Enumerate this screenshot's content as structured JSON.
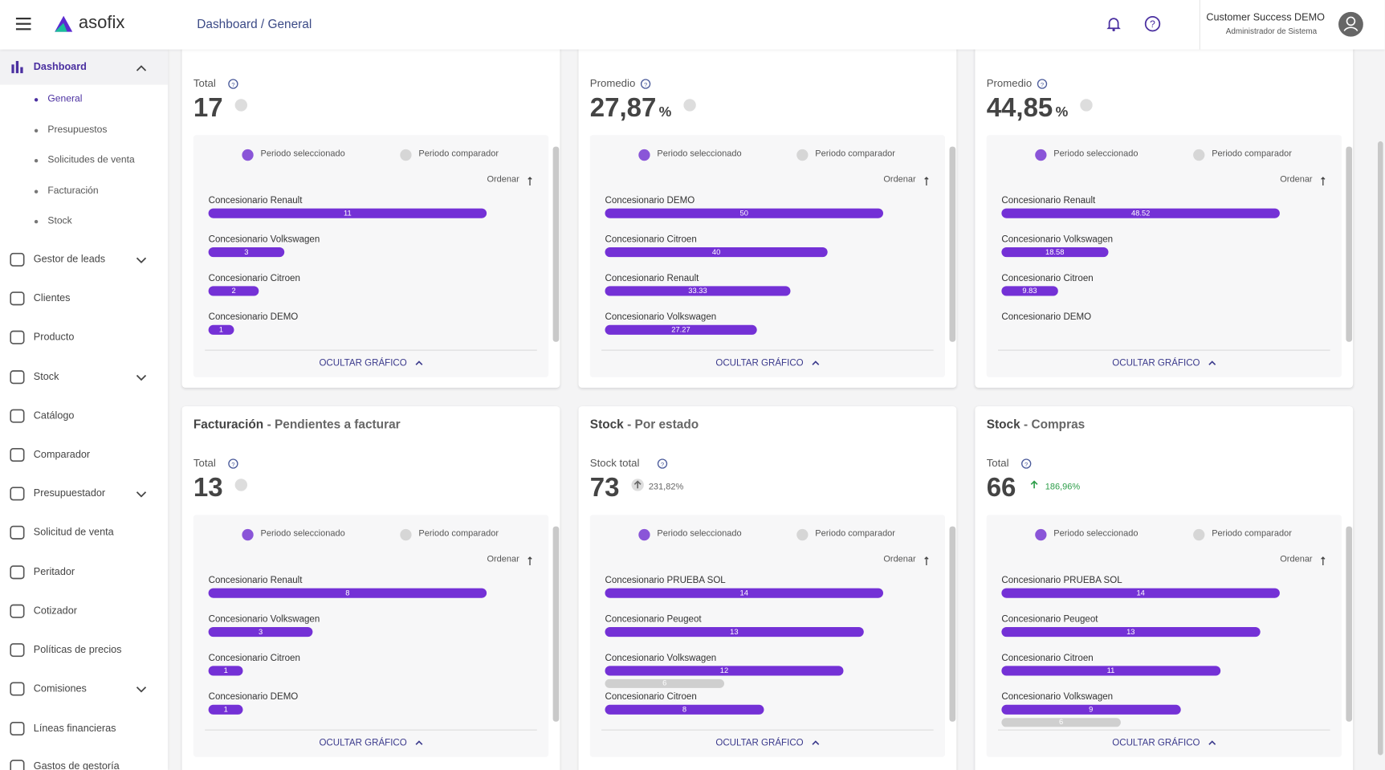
{
  "header": {
    "logo": "asofix",
    "breadcrumb": "Dashboard / General",
    "user_name": "Customer Success DEMO",
    "user_role": "Administrador de Sistema"
  },
  "sidebar": {
    "dashboard": {
      "label": "Dashboard",
      "children": [
        "General",
        "Presupuestos",
        "Solicitudes de venta",
        "Facturación",
        "Stock"
      ]
    },
    "items": [
      {
        "label": "Gestor de leads",
        "expand": true
      },
      {
        "label": "Clientes",
        "expand": false
      },
      {
        "label": "Producto",
        "expand": false
      },
      {
        "label": "Stock",
        "expand": true
      },
      {
        "label": "Catálogo",
        "expand": false
      },
      {
        "label": "Comparador",
        "expand": false
      },
      {
        "label": "Presupuestador",
        "expand": true
      },
      {
        "label": "Solicitud de venta",
        "expand": false
      },
      {
        "label": "Peritador",
        "expand": false
      },
      {
        "label": "Cotizador",
        "expand": false
      },
      {
        "label": "Políticas de precios",
        "expand": false
      },
      {
        "label": "Comisiones",
        "expand": true
      },
      {
        "label": "Líneas financieras",
        "expand": false
      },
      {
        "label": "Gastos de gestoría",
        "expand": false
      }
    ]
  },
  "chart_labels": {
    "selected": "Periodo seleccionado",
    "comparator": "Periodo comparador",
    "sort": "Ordenar",
    "hide": "OCULTAR GRÁFICO"
  },
  "cards": [
    {
      "kpi_label": "Total",
      "kpi_value": 17,
      "chart": {
        "type": "bar",
        "color": "#7431d6",
        "categories": [
          "Concesionario Renault",
          "Concesionario Volkswagen",
          "Concesionario Citroen",
          "Concesionario DEMO"
        ],
        "values": [
          11,
          3,
          2,
          1
        ]
      }
    },
    {
      "kpi_label": "Promedio",
      "kpi_value": "27,87",
      "kpi_unit": "%",
      "chart": {
        "type": "bar",
        "color": "#7431d6",
        "categories": [
          "Concesionario DEMO",
          "Concesionario Citroen",
          "Concesionario Renault",
          "Concesionario Volkswagen"
        ],
        "values": [
          50,
          40,
          33.33,
          27.27
        ]
      }
    },
    {
      "kpi_label": "Promedio",
      "kpi_value": "44,85",
      "kpi_unit": "%",
      "chart": {
        "type": "bar",
        "color": "#7431d6",
        "categories": [
          "Concesionario Renault",
          "Concesionario Volkswagen",
          "Concesionario Citroen",
          "Concesionario DEMO"
        ],
        "values": [
          48.52,
          18.58,
          9.83,
          null
        ]
      }
    },
    {
      "title": "Facturación",
      "subtitle": "- Pendientes a facturar",
      "kpi_label": "Total",
      "kpi_value": 13,
      "chart": {
        "type": "bar",
        "color": "#7431d6",
        "categories": [
          "Concesionario Renault",
          "Concesionario Volkswagen",
          "Concesionario Citroen",
          "Concesionario DEMO"
        ],
        "values": [
          8,
          3,
          1,
          1
        ]
      }
    },
    {
      "title": "Stock",
      "subtitle": "- Por estado",
      "kpi_label": "Stock total",
      "kpi_value": 73,
      "trend": "231,82%",
      "trend_color": "#666666",
      "chart": {
        "type": "bar",
        "color": "#7431d6",
        "compare_color": "#cfcfcf",
        "categories": [
          "Concesionario PRUEBA SOL",
          "Concesionario Peugeot",
          "Concesionario Volkswagen",
          "Concesionario Citroen"
        ],
        "values": [
          14,
          13,
          12,
          8
        ],
        "compare": [
          null,
          null,
          6,
          null
        ]
      }
    },
    {
      "title": "Stock",
      "subtitle": "- Compras",
      "kpi_label": "Total",
      "kpi_value": 66,
      "trend": "186,96%",
      "trend_color": "#2e9e4a",
      "chart": {
        "type": "bar",
        "color": "#7431d6",
        "compare_color": "#cfcfcf",
        "categories": [
          "Concesionario PRUEBA SOL",
          "Concesionario Peugeot",
          "Concesionario Citroen",
          "Concesionario Volkswagen"
        ],
        "values": [
          14,
          13,
          11,
          9
        ],
        "compare": [
          null,
          null,
          null,
          6
        ]
      }
    }
  ]
}
